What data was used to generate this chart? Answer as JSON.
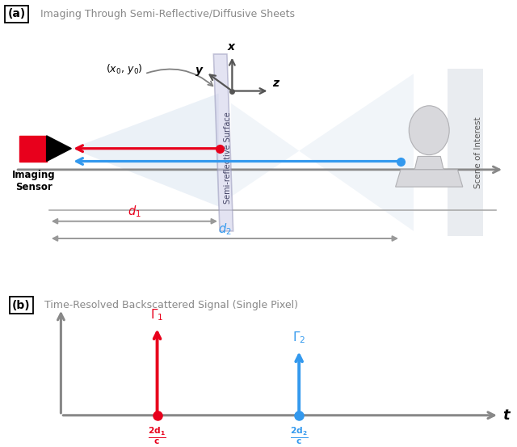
{
  "title_a": "Imaging Through Semi-Reflective/Diffusive Sheets",
  "title_b": "Time-Resolved Backscattered Signal (Single Pixel)",
  "label_a": "(a)",
  "label_b": "(b)",
  "red_color": "#e8001c",
  "blue_color": "#3399ee",
  "gray_color": "#888888",
  "dark_gray": "#555555",
  "sensor_label": "Imaging\nSensor",
  "scene_label": "Scene of Interest",
  "surface_label": "Semi-reflective Surface",
  "bg_color": "white"
}
